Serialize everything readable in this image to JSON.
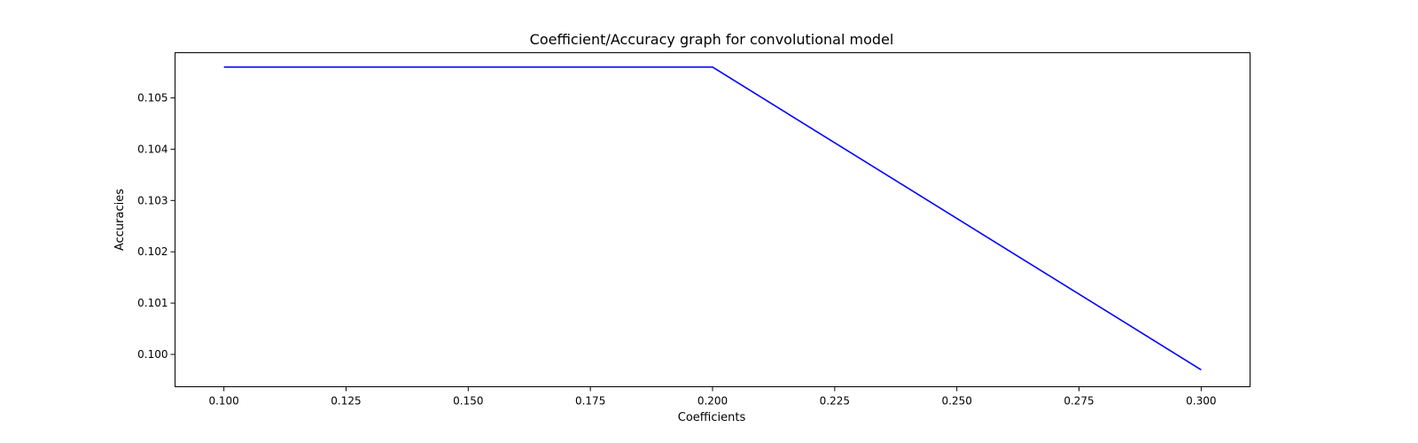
{
  "chart_data": {
    "type": "line",
    "title": "Coefficient/Accuracy graph for convolutional model",
    "xlabel": "Coefficients",
    "ylabel": "Accuracies",
    "xlim": [
      0.09,
      0.31
    ],
    "ylim": [
      0.09937,
      0.10588
    ],
    "x_ticks": [
      {
        "value": 0.1,
        "label": "0.100"
      },
      {
        "value": 0.125,
        "label": "0.125"
      },
      {
        "value": 0.15,
        "label": "0.150"
      },
      {
        "value": 0.175,
        "label": "0.175"
      },
      {
        "value": 0.2,
        "label": "0.200"
      },
      {
        "value": 0.225,
        "label": "0.225"
      },
      {
        "value": 0.25,
        "label": "0.250"
      },
      {
        "value": 0.275,
        "label": "0.275"
      },
      {
        "value": 0.3,
        "label": "0.300"
      }
    ],
    "y_ticks": [
      {
        "value": 0.1,
        "label": "0.100"
      },
      {
        "value": 0.101,
        "label": "0.101"
      },
      {
        "value": 0.102,
        "label": "0.102"
      },
      {
        "value": 0.103,
        "label": "0.103"
      },
      {
        "value": 0.104,
        "label": "0.104"
      },
      {
        "value": 0.105,
        "label": "0.105"
      }
    ],
    "grid": false,
    "series": [
      {
        "color": "#0000ff",
        "x": [
          0.1,
          0.2,
          0.3
        ],
        "y": [
          0.1056,
          0.1056,
          0.0997
        ]
      }
    ]
  }
}
